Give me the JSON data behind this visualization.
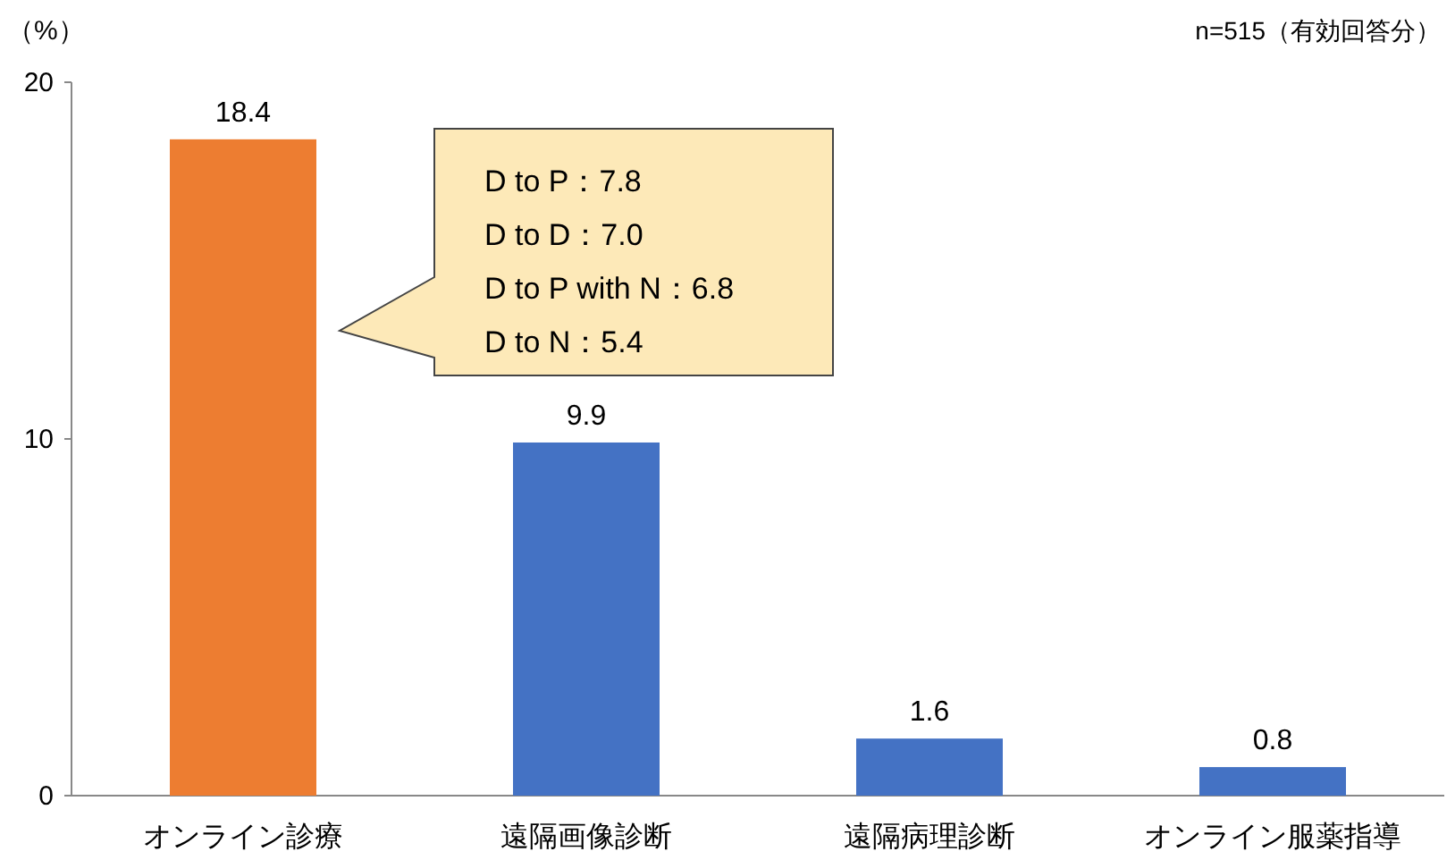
{
  "chart_data": {
    "type": "bar",
    "ylabel": "（%）",
    "categories": [
      "オンライン診療",
      "遠隔画像診断",
      "遠隔病理診断",
      "オンライン服薬指導"
    ],
    "values": [
      18.4,
      9.9,
      1.6,
      0.8
    ],
    "colors": [
      "#ed7d31",
      "#4472c4",
      "#4472c4",
      "#4472c4"
    ],
    "ylim": [
      0,
      20
    ],
    "yticks": [
      0,
      10,
      20
    ],
    "data_labels": true,
    "grid": false,
    "annotations": [
      "n=515（有効回答分）",
      "D to P：7.8\nD to D：7.0\nD to P with N：6.8\nD to N：5.4"
    ]
  }
}
